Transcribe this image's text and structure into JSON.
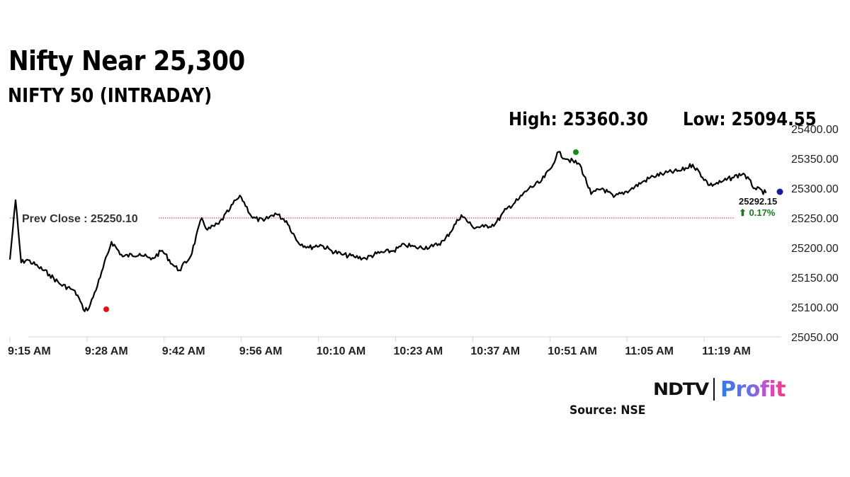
{
  "header": {
    "title": "Nifty Near 25,300",
    "subtitle": "NIFTY 50 (INTRADAY)",
    "high_label": "High: 25360.30",
    "low_label": "Low: 25094.55"
  },
  "annotations": {
    "prev_close_label": "Prev Close : 25250.10",
    "last_value": "25292.15",
    "change": "⬆ 0.17%"
  },
  "footer": {
    "brand_left": "NDTV",
    "brand_right": "Profit",
    "source": "Source: NSE"
  },
  "colors": {
    "line": "#000000",
    "prev_close": "#d9534f",
    "high_marker": "#1a8a1a",
    "low_marker": "#e01010",
    "last_marker": "#1a1aa0",
    "change_positive": "#1a7a1a"
  },
  "chart_data": {
    "type": "line",
    "title": "NIFTY 50 (INTRADAY)",
    "subtitle": "Nifty Near 25,300",
    "xlabel": "",
    "ylabel": "",
    "x_ticks": [
      "9:15 AM",
      "9:28 AM",
      "9:42 AM",
      "9:56 AM",
      "10:10 AM",
      "10:23 AM",
      "10:37 AM",
      "10:51 AM",
      "11:05 AM",
      "11:19 AM"
    ],
    "y_ticks": [
      "25400.00",
      "25350.00",
      "25300.00",
      "25250.00",
      "25200.00",
      "25150.00",
      "25100.00",
      "25050.00"
    ],
    "ylim": [
      25050,
      25400
    ],
    "y_axis_position": "right",
    "grid": false,
    "legend": null,
    "high": 25360.3,
    "low": 25094.55,
    "prev_close": 25250.1,
    "last": 25292.15,
    "change_pct": 0.17,
    "series": [
      {
        "name": "NIFTY 50",
        "x": [
          "9:15",
          "9:16",
          "9:17",
          "9:18",
          "9:20",
          "9:22",
          "9:24",
          "9:26",
          "9:27",
          "9:28",
          "9:29",
          "9:31",
          "9:33",
          "9:35",
          "9:38",
          "9:40",
          "9:42",
          "9:44",
          "9:45",
          "9:47",
          "9:49",
          "9:50",
          "9:52",
          "9:54",
          "9:55",
          "9:56",
          "9:58",
          "10:00",
          "10:02",
          "10:04",
          "10:06",
          "10:08",
          "10:10",
          "10:12",
          "10:14",
          "10:16",
          "10:18",
          "10:20",
          "10:23",
          "10:25",
          "10:27",
          "10:30",
          "10:32",
          "10:35",
          "10:37",
          "10:39",
          "10:41",
          "10:43",
          "10:45",
          "10:47",
          "10:49",
          "10:51",
          "10:52",
          "10:54",
          "10:56",
          "10:58",
          "11:00",
          "11:02",
          "11:05",
          "11:07",
          "11:09",
          "11:11",
          "11:14",
          "11:16",
          "11:19",
          "11:21",
          "11:23",
          "11:25",
          "11:27",
          "11:29"
        ],
        "values": [
          25180,
          25280,
          25175,
          25180,
          25168,
          25155,
          25138,
          25130,
          25120,
          25096,
          25098,
          25150,
          25210,
          25185,
          25190,
          25180,
          25195,
          25170,
          25162,
          25185,
          25250,
          25230,
          25240,
          25265,
          25280,
          25285,
          25250,
          25245,
          25258,
          25245,
          25210,
          25200,
          25205,
          25195,
          25188,
          25185,
          25182,
          25190,
          25195,
          25205,
          25200,
          25202,
          25212,
          25255,
          25235,
          25235,
          25240,
          25265,
          25280,
          25300,
          25310,
          25335,
          25360,
          25348,
          25340,
          25290,
          25300,
          25285,
          25298,
          25310,
          25320,
          25325,
          25330,
          25340,
          25305,
          25310,
          25318,
          25325,
          25300,
          25292.15
        ]
      }
    ]
  }
}
